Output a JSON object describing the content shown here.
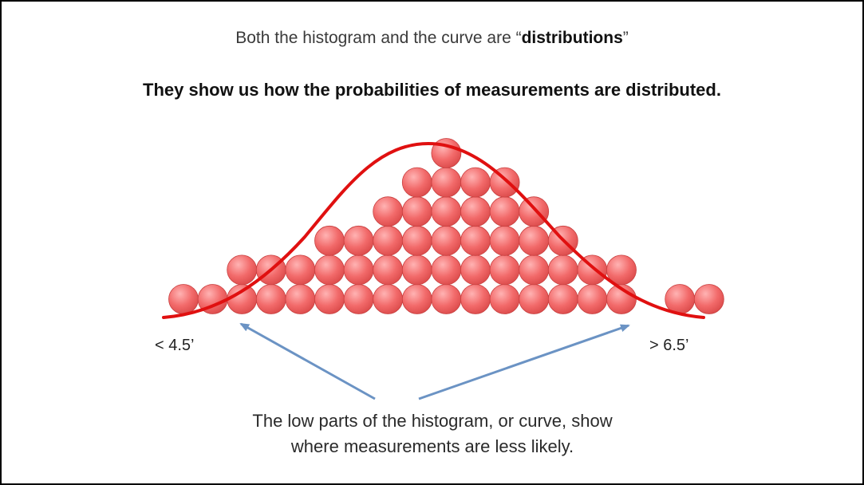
{
  "subtitle": {
    "prefix": "Both the histogram and the curve are “",
    "bold": "distributions",
    "suffix": "”"
  },
  "headline": "They show us how the probabilities of measurements are distributed.",
  "axis": {
    "left_label": "< 4.5’",
    "right_label": "> 6.5’"
  },
  "caption": {
    "line1": "The low parts of the histogram, or curve, show",
    "line2": "where measurements are less likely."
  },
  "histogram": {
    "column_counts": [
      1,
      1,
      2,
      2,
      2,
      3,
      3,
      4,
      5,
      6,
      5,
      5,
      4,
      3,
      2,
      2,
      0,
      1,
      1
    ],
    "ball_color": "#f06060",
    "curve_color": "#e01010",
    "arrow_color": "#6b93c4"
  }
}
